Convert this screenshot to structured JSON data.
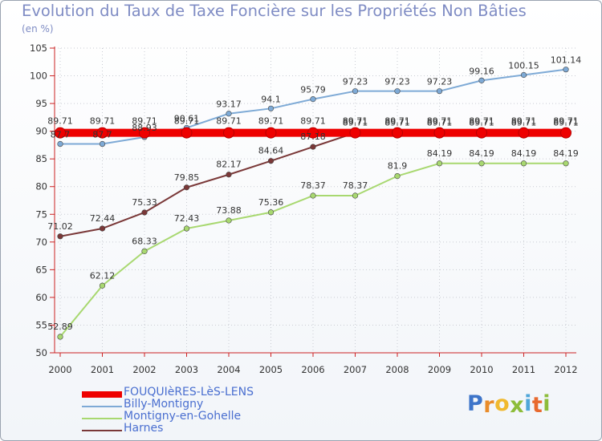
{
  "title": "Evolution du Taux de Taxe Foncière sur les Propriétés Non Bâties",
  "unit_label": "(en %)",
  "logo_text": "Proxiti",
  "logo_letters": [
    "P",
    "r",
    "o",
    "x",
    "i",
    "t",
    "i"
  ],
  "logo_colors": [
    "#3d74c9",
    "#e98c2a",
    "#f0b92f",
    "#8dbd3a",
    "#4fa6d9",
    "#e86a2f",
    "#8dbd3a"
  ],
  "chart_data": {
    "type": "line",
    "title": "Evolution du Taux de Taxe Foncière sur les Propriétés Non Bâties",
    "ylabel": "(en %)",
    "ylim": [
      50,
      105
    ],
    "yticks": [
      50,
      55,
      60,
      65,
      70,
      75,
      80,
      85,
      90,
      95,
      100,
      105
    ],
    "categories": [
      "2000",
      "2001",
      "2002",
      "2003",
      "2004",
      "2005",
      "2006",
      "2007",
      "2008",
      "2009",
      "2010",
      "2011",
      "2012"
    ],
    "series": [
      {
        "name": "FOUQUIèRES-LèS-LENS",
        "color": "#ee0000",
        "line_style": "thick",
        "values": [
          89.71,
          89.71,
          89.71,
          89.71,
          89.71,
          89.71,
          89.71,
          89.71,
          89.71,
          89.71,
          89.71,
          89.71,
          89.71
        ],
        "labels": [
          "89.71",
          "89.71",
          "89.71",
          "89.71",
          "89.71",
          "89.71",
          "89.71",
          "89.71",
          "89.71",
          "89.71",
          "89.71",
          "89.71",
          "89.71"
        ]
      },
      {
        "name": "Billy-Montigny",
        "color": "#7eaad6",
        "line_style": "thin",
        "values": [
          87.7,
          87.7,
          88.93,
          90.61,
          93.17,
          94.1,
          95.79,
          97.23,
          97.23,
          97.23,
          99.16,
          100.15,
          101.14
        ],
        "labels": [
          "87.7",
          "87.7",
          "88.93",
          "90.61",
          "93.17",
          "94.1",
          "95.79",
          "97.23",
          "97.23",
          "97.23",
          "99.16",
          "100.15",
          "101.14"
        ]
      },
      {
        "name": "Montigny-en-Gohelle",
        "color": "#a8d870",
        "line_style": "thin",
        "values": [
          52.89,
          62.12,
          68.33,
          72.43,
          73.88,
          75.36,
          78.37,
          78.37,
          81.9,
          84.19,
          84.19,
          84.19,
          84.19
        ],
        "labels": [
          "52.89",
          "62.12",
          "68.33",
          "72.43",
          "73.88",
          "75.36",
          "78.37",
          "78.37",
          "81.9",
          "84.19",
          "84.19",
          "84.19",
          "84.19"
        ]
      },
      {
        "name": "Harnes",
        "color": "#7a3838",
        "line_style": "thin",
        "values": [
          71.02,
          72.44,
          75.33,
          79.85,
          82.17,
          84.64,
          87.18,
          89.71,
          89.71,
          89.71,
          89.71,
          89.71,
          89.71
        ],
        "labels": [
          "71.02",
          "72.44",
          "75.33",
          "79.85",
          "82.17",
          "84.64",
          "87.18",
          "89.71",
          "89.71",
          "89.71",
          "89.71",
          "89.71",
          "89.71"
        ]
      }
    ],
    "legend": "bottom-left"
  }
}
